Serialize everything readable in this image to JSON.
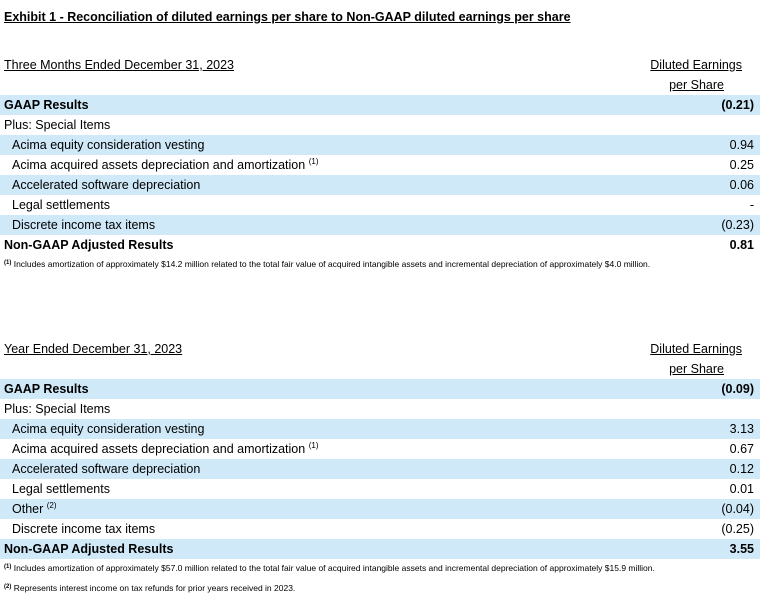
{
  "exhibit_title": "Exhibit 1 - Reconciliation of diluted earnings per share to Non-GAAP diluted earnings per share",
  "sections": [
    {
      "period": "Three Months Ended December 31, 2023",
      "column_header_line1": "Diluted Earnings",
      "column_header_line2": "per Share",
      "rows": [
        {
          "label": "GAAP Results",
          "value": "(0.21)",
          "sup": "",
          "style": "bold",
          "shaded": true
        },
        {
          "label": "Plus: Special Items",
          "value": "",
          "sup": "",
          "style": "plain",
          "shaded": false
        },
        {
          "label": "Acima equity consideration vesting",
          "value": "0.94",
          "sup": "",
          "style": "indent",
          "shaded": true
        },
        {
          "label": "Acima acquired assets depreciation and amortization",
          "value": "0.25",
          "sup": "(1)",
          "style": "indent",
          "shaded": false
        },
        {
          "label": "Accelerated software depreciation",
          "value": "0.06",
          "sup": "",
          "style": "indent",
          "shaded": true
        },
        {
          "label": "Legal settlements",
          "value": "-",
          "sup": "",
          "style": "indent",
          "shaded": false
        },
        {
          "label": "Discrete income tax items",
          "value": "(0.23)",
          "sup": "",
          "style": "indent",
          "shaded": true
        },
        {
          "label": "Non-GAAP Adjusted Results",
          "value": "0.81",
          "sup": "",
          "style": "bold",
          "shaded": false
        }
      ],
      "footnotes": [
        {
          "marker": "(1)",
          "text": " Includes amortization of approximately $14.2 million related to the total fair value of acquired intangible assets and incremental depreciation of approximately $4.0 million."
        }
      ]
    },
    {
      "period": "Year Ended December 31, 2023",
      "column_header_line1": "Diluted Earnings",
      "column_header_line2": "per Share",
      "rows": [
        {
          "label": "GAAP Results",
          "value": "(0.09)",
          "sup": "",
          "style": "bold",
          "shaded": true
        },
        {
          "label": "Plus: Special Items",
          "value": "",
          "sup": "",
          "style": "plain",
          "shaded": false
        },
        {
          "label": "Acima equity consideration vesting",
          "value": "3.13",
          "sup": "",
          "style": "indent",
          "shaded": true
        },
        {
          "label": "Acima acquired assets depreciation and amortization",
          "value": "0.67",
          "sup": "(1)",
          "style": "indent",
          "shaded": false
        },
        {
          "label": "Accelerated software depreciation",
          "value": "0.12",
          "sup": "",
          "style": "indent",
          "shaded": true
        },
        {
          "label": "Legal settlements",
          "value": "0.01",
          "sup": "",
          "style": "indent",
          "shaded": false
        },
        {
          "label": "Other",
          "value": "(0.04)",
          "sup": "(2)",
          "style": "indent",
          "shaded": true
        },
        {
          "label": "Discrete income tax items",
          "value": "(0.25)",
          "sup": "",
          "style": "indent",
          "shaded": false
        },
        {
          "label": "Non-GAAP Adjusted Results",
          "value": "3.55",
          "sup": "",
          "style": "bold",
          "shaded": true
        }
      ],
      "footnotes": [
        {
          "marker": "(1)",
          "text": " Includes amortization of approximately $57.0 million related to the total fair value of acquired intangible assets and incremental depreciation of approximately $15.9 million."
        },
        {
          "marker": "(2)",
          "text": " Represents interest income on tax refunds for prior years received in 2023."
        }
      ]
    }
  ]
}
